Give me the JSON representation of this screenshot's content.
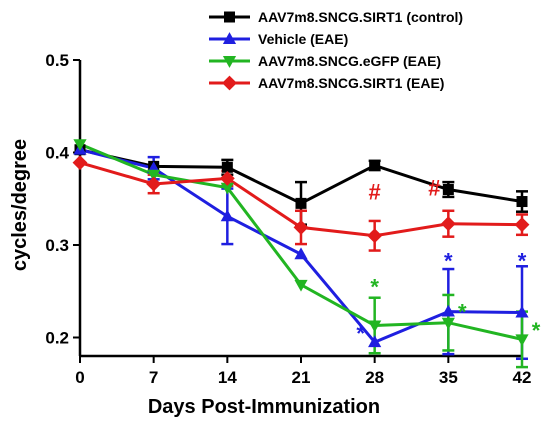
{
  "chart_data": {
    "type": "line",
    "xlabel": "Days Post-Immunization",
    "ylabel": "cycles/degree",
    "x": [
      0,
      7,
      14,
      21,
      28,
      35,
      42
    ],
    "xticks": [
      "0",
      "7",
      "14",
      "21",
      "28",
      "35",
      "42"
    ],
    "yticks": [
      "0.2",
      "0.3",
      "0.4",
      "0.5"
    ],
    "ylim": [
      0.18,
      0.5
    ],
    "xlim": [
      0,
      42
    ],
    "grid": false,
    "legend_position": "top-right",
    "series": [
      {
        "name": "AAV7m8.SNCG.SIRT1 (control)",
        "color": "#000000",
        "marker": "square",
        "values": [
          0.403,
          0.385,
          0.384,
          0.345,
          0.386,
          0.36,
          0.347
        ],
        "errors": [
          0.0,
          0.0,
          0.008,
          0.023,
          0.005,
          0.008,
          0.011
        ]
      },
      {
        "name": "Vehicle (EAE)",
        "color": "#1f1fe0",
        "marker": "triangle-up",
        "values": [
          0.403,
          0.383,
          0.331,
          0.29,
          0.195,
          0.228,
          0.227
        ],
        "errors": [
          0.0,
          0.012,
          0.03,
          0.0,
          0.0,
          0.046,
          0.05
        ]
      },
      {
        "name": "AAV7m8.SNCG.eGFP (EAE)",
        "color": "#22b522",
        "marker": "triangle-down",
        "values": [
          0.409,
          0.376,
          0.362,
          0.257,
          0.213,
          0.216,
          0.198
        ],
        "errors": [
          0.0,
          0.0,
          0.0,
          0.0,
          0.03,
          0.03,
          0.03
        ]
      },
      {
        "name": "AAV7m8.SNCG.SIRT1 (EAE)",
        "color": "#e21b1b",
        "marker": "diamond",
        "values": [
          0.389,
          0.366,
          0.372,
          0.319,
          0.31,
          0.323,
          0.322
        ],
        "errors": [
          0.0,
          0.01,
          0.008,
          0.018,
          0.016,
          0.014,
          0.011
        ]
      }
    ],
    "annotations": [
      {
        "text": "*",
        "x": 28,
        "y": 0.205,
        "color": "#1f1fe0",
        "anchor": "left"
      },
      {
        "text": "*",
        "x": 28,
        "y": 0.255,
        "color": "#22b522",
        "anchor": "center"
      },
      {
        "text": "#",
        "x": 28,
        "y": 0.358,
        "color": "#e21b1b",
        "anchor": "center"
      },
      {
        "text": "*",
        "x": 35,
        "y": 0.283,
        "color": "#1f1fe0",
        "anchor": "center"
      },
      {
        "text": "*",
        "x": 35,
        "y": 0.228,
        "color": "#22b522",
        "anchor": "right"
      },
      {
        "text": "#",
        "x": 35,
        "y": 0.362,
        "color": "#e21b1b",
        "anchor": "left"
      },
      {
        "text": "*",
        "x": 42,
        "y": 0.283,
        "color": "#1f1fe0",
        "anchor": "center"
      },
      {
        "text": "*",
        "x": 42,
        "y": 0.208,
        "color": "#22b522",
        "anchor": "right"
      }
    ]
  }
}
